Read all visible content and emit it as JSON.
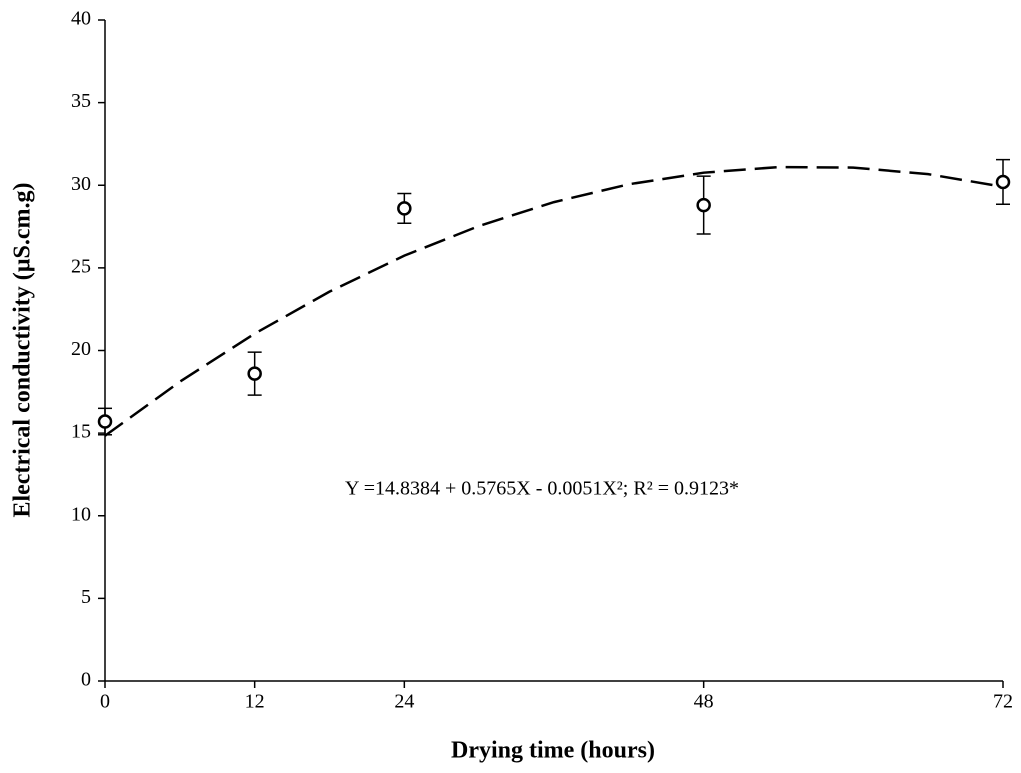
{
  "chart_data": {
    "type": "scatter",
    "x_label": "Drying time (hours)",
    "y_label": "Electrical conductivity (µS.cm.g)",
    "annotation": "Y =14.8384 + 0.5765X - 0.0051X²; R² = 0.9123*",
    "x": [
      0,
      12,
      24,
      48,
      72
    ],
    "values": [
      15.7,
      18.6,
      28.6,
      28.8,
      30.2
    ],
    "errors": [
      0.8,
      1.3,
      0.9,
      1.75,
      1.35
    ],
    "color": "#000000",
    "fit": {
      "x": [
        0,
        6,
        12,
        18,
        24,
        30,
        36,
        42,
        48,
        54,
        60,
        66,
        72
      ],
      "values": [
        14.84,
        18.11,
        21.02,
        23.56,
        25.74,
        27.54,
        28.98,
        30.06,
        30.76,
        31.1,
        31.07,
        30.67,
        29.91
      ]
    },
    "xlim": [
      0,
      72
    ],
    "xticks": [
      0,
      12,
      24,
      48,
      72
    ],
    "ylim": [
      0,
      40
    ],
    "yticks": [
      0,
      5,
      10,
      15,
      20,
      25,
      30,
      35,
      40
    ]
  }
}
